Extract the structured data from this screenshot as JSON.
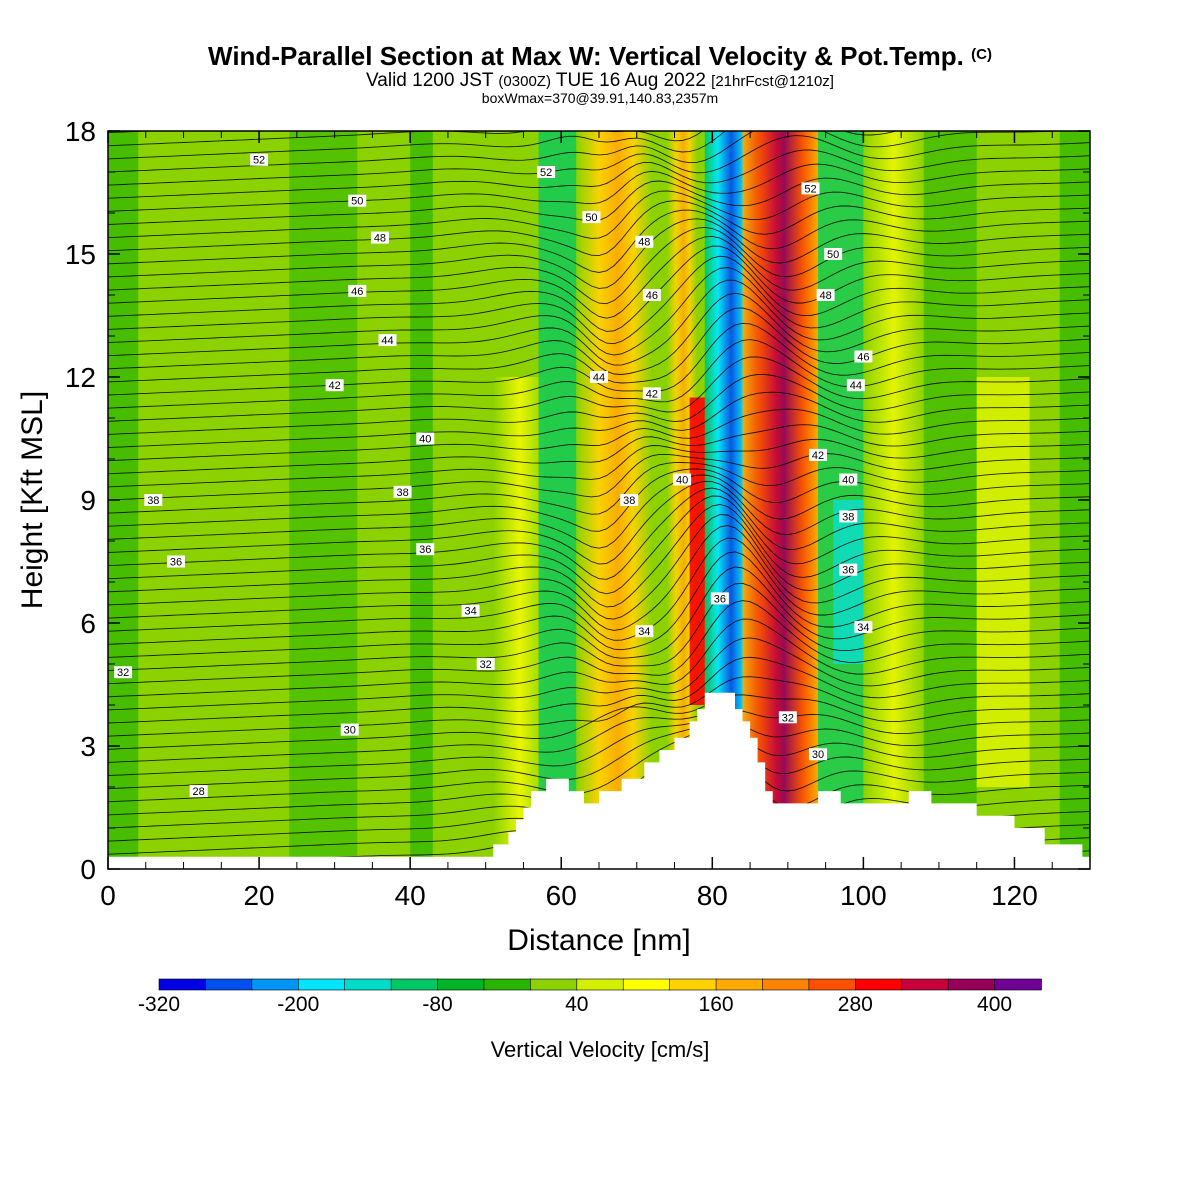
{
  "header": {
    "title": "Wind-Parallel Section at Max W: Vertical Velocity & Pot.Temp.",
    "title_mark": "(C)",
    "valid_main": "Valid 1200 JST",
    "valid_utc": "(0300Z)",
    "valid_date": "TUE 16 Aug 2022",
    "forecast": "[21hrFcst@1210z]",
    "box_info": "boxWmax=370@39.91,140.83,2357m"
  },
  "chart_data": {
    "type": "heatmap",
    "xlabel": "Distance [nm]",
    "ylabel": "Height [Kft MSL]",
    "xlim": [
      0,
      130
    ],
    "ylim": [
      0,
      18
    ],
    "x_ticks": [
      0,
      20,
      40,
      60,
      80,
      100,
      120
    ],
    "y_ticks": [
      0,
      3,
      6,
      9,
      12,
      15,
      18
    ],
    "colorbar": {
      "label": "Vertical Velocity [cm/s]",
      "tick_labels": [
        "-320",
        "-200",
        "-80",
        "40",
        "160",
        "280",
        "400"
      ],
      "colors": [
        "#0000e6",
        "#0050f0",
        "#0096f5",
        "#00e6ff",
        "#00dcc8",
        "#00c864",
        "#00b428",
        "#28b400",
        "#8cd200",
        "#d2f000",
        "#ffff00",
        "#ffd200",
        "#ffaa00",
        "#ff8200",
        "#ff5000",
        "#ff0000",
        "#c8003c",
        "#96005a",
        "#6e0096"
      ]
    },
    "terrain_profile": [
      [
        0,
        0.3
      ],
      [
        51,
        0.3
      ],
      [
        51,
        0.6
      ],
      [
        53,
        0.6
      ],
      [
        53,
        0.9
      ],
      [
        54,
        0.9
      ],
      [
        54,
        1.2
      ],
      [
        55,
        1.2
      ],
      [
        55,
        1.5
      ],
      [
        56,
        1.5
      ],
      [
        56,
        1.9
      ],
      [
        58,
        1.9
      ],
      [
        58,
        2.2
      ],
      [
        61,
        2.2
      ],
      [
        61,
        1.9
      ],
      [
        63,
        1.9
      ],
      [
        63,
        1.6
      ],
      [
        65,
        1.6
      ],
      [
        65,
        1.9
      ],
      [
        68,
        1.9
      ],
      [
        68,
        2.2
      ],
      [
        71,
        2.2
      ],
      [
        71,
        2.6
      ],
      [
        73,
        2.6
      ],
      [
        73,
        2.9
      ],
      [
        75,
        2.9
      ],
      [
        75,
        3.2
      ],
      [
        77,
        3.2
      ],
      [
        77,
        3.6
      ],
      [
        78,
        3.6
      ],
      [
        78,
        3.9
      ],
      [
        79,
        3.9
      ],
      [
        79,
        4.3
      ],
      [
        83,
        4.3
      ],
      [
        83,
        3.9
      ],
      [
        84,
        3.9
      ],
      [
        84,
        3.6
      ],
      [
        85,
        3.6
      ],
      [
        85,
        3.2
      ],
      [
        86,
        3.2
      ],
      [
        86,
        2.6
      ],
      [
        87,
        2.6
      ],
      [
        87,
        1.9
      ],
      [
        88,
        1.9
      ],
      [
        88,
        1.6
      ],
      [
        94,
        1.6
      ],
      [
        94,
        1.9
      ],
      [
        97,
        1.9
      ],
      [
        97,
        1.6
      ],
      [
        106,
        1.6
      ],
      [
        106,
        1.9
      ],
      [
        109,
        1.9
      ],
      [
        109,
        1.6
      ],
      [
        115,
        1.6
      ],
      [
        115,
        1.3
      ],
      [
        120,
        1.3
      ],
      [
        120,
        1.0
      ],
      [
        124,
        1.0
      ],
      [
        124,
        0.6
      ],
      [
        129,
        0.6
      ],
      [
        129,
        0.3
      ],
      [
        130,
        0.3
      ],
      [
        130,
        0
      ]
    ],
    "theta_contours": [
      {
        "label": "28",
        "x": 12,
        "y": 1.9
      },
      {
        "label": "30",
        "x": 32,
        "y": 3.4
      },
      {
        "label": "32",
        "x": 2,
        "y": 4.8
      },
      {
        "label": "32",
        "x": 50,
        "y": 5.0
      },
      {
        "label": "34",
        "x": 48,
        "y": 6.3
      },
      {
        "label": "34",
        "x": 71,
        "y": 5.8
      },
      {
        "label": "36",
        "x": 9,
        "y": 7.5
      },
      {
        "label": "36",
        "x": 42,
        "y": 7.8
      },
      {
        "label": "36",
        "x": 81,
        "y": 6.6
      },
      {
        "label": "38",
        "x": 6,
        "y": 9.0
      },
      {
        "label": "38",
        "x": 39,
        "y": 9.2
      },
      {
        "label": "38",
        "x": 69,
        "y": 9.0
      },
      {
        "label": "40",
        "x": 42,
        "y": 10.5
      },
      {
        "label": "40",
        "x": 76,
        "y": 9.5
      },
      {
        "label": "42",
        "x": 30,
        "y": 11.8
      },
      {
        "label": "42",
        "x": 72,
        "y": 11.6
      },
      {
        "label": "44",
        "x": 37,
        "y": 12.9
      },
      {
        "label": "44",
        "x": 65,
        "y": 12.0
      },
      {
        "label": "46",
        "x": 33,
        "y": 14.1
      },
      {
        "label": "46",
        "x": 72,
        "y": 14.0
      },
      {
        "label": "48",
        "x": 36,
        "y": 15.4
      },
      {
        "label": "48",
        "x": 71,
        "y": 15.3
      },
      {
        "label": "50",
        "x": 33,
        "y": 16.3
      },
      {
        "label": "50",
        "x": 64,
        "y": 15.9
      },
      {
        "label": "52",
        "x": 20,
        "y": 17.3
      },
      {
        "label": "52",
        "x": 58,
        "y": 17.0
      },
      {
        "label": "52",
        "x": 93,
        "y": 16.6
      },
      {
        "label": "50",
        "x": 96,
        "y": 15.0
      },
      {
        "label": "48",
        "x": 95,
        "y": 14.0
      },
      {
        "label": "46",
        "x": 100,
        "y": 12.5
      },
      {
        "label": "44",
        "x": 99,
        "y": 11.8
      },
      {
        "label": "42",
        "x": 94,
        "y": 10.1
      },
      {
        "label": "40",
        "x": 98,
        "y": 9.5
      },
      {
        "label": "38",
        "x": 98,
        "y": 8.6
      },
      {
        "label": "36",
        "x": 98,
        "y": 7.3
      },
      {
        "label": "34",
        "x": 100,
        "y": 5.9
      },
      {
        "label": "32",
        "x": 90,
        "y": 3.7
      },
      {
        "label": "30",
        "x": 94,
        "y": 2.8
      }
    ]
  }
}
